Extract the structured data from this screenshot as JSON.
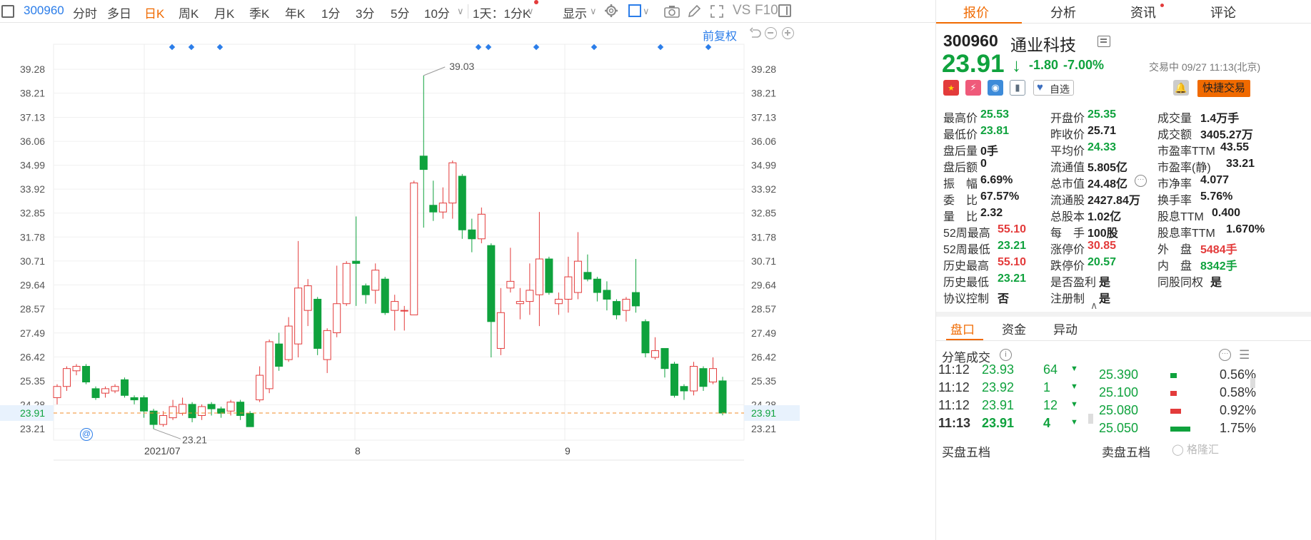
{
  "toolbar": {
    "stock_code": "300960",
    "tabs": [
      "分时",
      "多日",
      "日K",
      "周K",
      "月K",
      "季K",
      "年K",
      "1分",
      "3分",
      "5分",
      "10分"
    ],
    "active_tab": "日K",
    "range_select": "1天：1分K",
    "display_label": "显示",
    "vs_label": "VS",
    "f10_label": "F10"
  },
  "chart": {
    "fq_label": "前复权",
    "current_price_label": "23.91",
    "high_annotation": "39.03",
    "low_annotation": "23.21",
    "y_ticks": [
      "39.28",
      "38.21",
      "37.13",
      "36.06",
      "34.99",
      "33.92",
      "32.85",
      "31.78",
      "30.71",
      "29.64",
      "28.57",
      "27.49",
      "26.42",
      "25.35",
      "24.28",
      "23.21"
    ],
    "x_labels": [
      "2021/07",
      "8",
      "9"
    ],
    "colors": {
      "up": "#e33b3b",
      "down": "#0fa23d",
      "current_line": "#f28c28",
      "marker": "#2b7de9"
    }
  },
  "chart_data": {
    "type": "candlestick",
    "ylim": [
      22.7,
      40.4
    ],
    "current": 23.91,
    "candles": [
      [
        24.6,
        25.1,
        25.2,
        24.3
      ],
      [
        25.1,
        25.9,
        26.0,
        24.9
      ],
      [
        25.8,
        26.0,
        26.1,
        25.6
      ],
      [
        26.0,
        25.3,
        26.1,
        25.2
      ],
      [
        25.0,
        24.6,
        25.1,
        24.5
      ],
      [
        24.8,
        25.0,
        25.1,
        24.6
      ],
      [
        24.9,
        25.1,
        25.2,
        24.8
      ],
      [
        25.4,
        24.7,
        25.5,
        24.6
      ],
      [
        24.6,
        24.5,
        24.7,
        24.3
      ],
      [
        24.6,
        24.0,
        24.7,
        23.7
      ],
      [
        24.0,
        23.4,
        24.1,
        23.2
      ],
      [
        23.4,
        23.8,
        24.0,
        23.3
      ],
      [
        23.7,
        24.2,
        24.5,
        23.6
      ],
      [
        23.9,
        24.3,
        24.6,
        23.8
      ],
      [
        24.3,
        23.7,
        24.4,
        23.5
      ],
      [
        23.8,
        24.2,
        24.3,
        23.6
      ],
      [
        24.3,
        24.1,
        24.4,
        23.8
      ],
      [
        24.1,
        23.9,
        24.2,
        23.7
      ],
      [
        24.0,
        24.4,
        24.5,
        23.8
      ],
      [
        24.4,
        23.8,
        24.5,
        23.6
      ],
      [
        23.9,
        23.3,
        24.0,
        23.3
      ],
      [
        24.5,
        25.6,
        26.0,
        24.4
      ],
      [
        25.0,
        27.1,
        27.2,
        24.8
      ],
      [
        27.0,
        26.0,
        27.5,
        25.8
      ],
      [
        26.3,
        27.8,
        28.2,
        26.2
      ],
      [
        27.0,
        29.5,
        31.6,
        26.4
      ],
      [
        28.5,
        29.6,
        29.9,
        27.8
      ],
      [
        29.0,
        26.8,
        29.1,
        26.5
      ],
      [
        26.3,
        27.6,
        27.7,
        25.7
      ],
      [
        27.5,
        28.8,
        30.5,
        27.3
      ],
      [
        28.8,
        30.6,
        30.7,
        28.7
      ],
      [
        30.7,
        30.6,
        32.7,
        28.7
      ],
      [
        29.6,
        29.2,
        29.7,
        28.8
      ],
      [
        29.4,
        30.3,
        30.6,
        28.8
      ],
      [
        29.9,
        28.4,
        30.0,
        28.3
      ],
      [
        28.5,
        28.9,
        29.2,
        27.6
      ],
      [
        28.5,
        28.5,
        28.7,
        27.6
      ],
      [
        28.3,
        34.2,
        34.3,
        28.3
      ],
      [
        35.4,
        34.8,
        39.0,
        32.2
      ],
      [
        33.2,
        32.9,
        34.3,
        32.5
      ],
      [
        32.9,
        33.3,
        34.0,
        32.6
      ],
      [
        33.3,
        35.1,
        35.2,
        32.6
      ],
      [
        34.5,
        32.1,
        34.6,
        31.7
      ],
      [
        32.1,
        31.7,
        32.6,
        31.1
      ],
      [
        31.7,
        32.8,
        33.1,
        31.5
      ],
      [
        31.4,
        28.0,
        31.5,
        26.4
      ],
      [
        26.8,
        28.4,
        29.5,
        26.5
      ],
      [
        29.5,
        29.8,
        31.3,
        29.3
      ],
      [
        28.8,
        28.9,
        29.5,
        28.1
      ],
      [
        28.9,
        29.4,
        30.6,
        28.3
      ],
      [
        29.2,
        30.8,
        32.9,
        27.8
      ],
      [
        30.8,
        29.3,
        30.9,
        29.2
      ],
      [
        28.8,
        29.0,
        29.3,
        28.3
      ],
      [
        29.0,
        30.0,
        30.9,
        28.4
      ],
      [
        29.3,
        30.7,
        32.0,
        29.0
      ],
      [
        30.2,
        29.9,
        31.0,
        29.8
      ],
      [
        29.9,
        29.3,
        30.0,
        28.9
      ],
      [
        29.4,
        29.0,
        29.8,
        28.5
      ],
      [
        28.9,
        28.3,
        29.0,
        28.1
      ],
      [
        28.5,
        29.0,
        29.1,
        28.0
      ],
      [
        29.3,
        28.7,
        30.8,
        28.4
      ],
      [
        28.0,
        26.6,
        28.1,
        26.4
      ],
      [
        26.4,
        26.7,
        27.3,
        26.3
      ],
      [
        26.8,
        25.9,
        26.8,
        25.5
      ],
      [
        26.1,
        24.7,
        26.2,
        24.6
      ],
      [
        25.1,
        24.9,
        25.2,
        24.5
      ],
      [
        24.9,
        26.0,
        26.2,
        24.7
      ],
      [
        25.9,
        25.1,
        26.0,
        24.9
      ],
      [
        25.3,
        25.9,
        26.4,
        25.2
      ],
      [
        25.35,
        23.91,
        25.53,
        23.81
      ]
    ],
    "markers_x_index": [
      10,
      14,
      19,
      46,
      47,
      52,
      58,
      65,
      70
    ]
  },
  "right": {
    "tabs": [
      "报价",
      "分析",
      "资讯",
      "评论"
    ],
    "active_tab": "报价",
    "stock_code": "300960",
    "stock_name": "通业科技",
    "price": "23.91",
    "change": "-1.80",
    "change_pct": "-7.00%",
    "trade_status": "交易中 09/27 11:13(北京)",
    "watch_label": "自选",
    "quick_trade_label": "快捷交易",
    "stats_col1": [
      {
        "label": "最高价",
        "value": "25.53",
        "color": "g"
      },
      {
        "label": "最低价",
        "value": "23.81",
        "color": "g"
      },
      {
        "label": "盘后量",
        "value": "0",
        "unit": "手",
        "color": ""
      },
      {
        "label": "盘后额",
        "value": "0",
        "color": ""
      },
      {
        "label": "振　幅",
        "value": "6.69%",
        "color": ""
      },
      {
        "label": "委　比",
        "value": "67.57%",
        "color": ""
      },
      {
        "label": "量　比",
        "value": "2.32",
        "color": ""
      },
      {
        "label": "52周最高",
        "value": "55.10",
        "color": "r"
      },
      {
        "label": "52周最低",
        "value": "23.21",
        "color": "g"
      },
      {
        "label": "历史最高",
        "value": "55.10",
        "color": "r"
      },
      {
        "label": "历史最低",
        "value": "23.21",
        "color": "g"
      },
      {
        "label": "协议控制",
        "value": "否",
        "color": ""
      }
    ],
    "stats_col2": [
      {
        "label": "开盘价",
        "value": "25.35",
        "color": "g"
      },
      {
        "label": "昨收价",
        "value": "25.71",
        "color": ""
      },
      {
        "label": "平均价",
        "value": "24.33",
        "color": "g"
      },
      {
        "label": "流通值",
        "value": "5.805亿",
        "color": ""
      },
      {
        "label": "总市值",
        "value": "24.48亿",
        "color": ""
      },
      {
        "label": "流通股",
        "value": "2427.84万",
        "color": ""
      },
      {
        "label": "总股本",
        "value": "1.02亿",
        "color": ""
      },
      {
        "label": "每　手",
        "value": "100股",
        "color": ""
      },
      {
        "label": "涨停价",
        "value": "30.85",
        "color": "r"
      },
      {
        "label": "跌停价",
        "value": "20.57",
        "color": "g"
      },
      {
        "label": "是否盈利",
        "value": "是",
        "color": ""
      },
      {
        "label": "注册制",
        "value": "是",
        "color": ""
      }
    ],
    "stats_col3": [
      {
        "label": "成交量",
        "value": "1.4万手",
        "color": ""
      },
      {
        "label": "成交额",
        "value": "3405.27万",
        "color": ""
      },
      {
        "label": "市盈率TTM",
        "value": "43.55",
        "color": ""
      },
      {
        "label": "市盈率(静)",
        "value": "33.21",
        "color": ""
      },
      {
        "label": "市净率",
        "value": "4.077",
        "color": ""
      },
      {
        "label": "换手率",
        "value": "5.76%",
        "color": ""
      },
      {
        "label": "股息TTM",
        "value": "0.400",
        "color": ""
      },
      {
        "label": "股息率TTM",
        "value": "1.670%",
        "color": ""
      },
      {
        "label": "外　盘",
        "value": "5484手",
        "color": "r"
      },
      {
        "label": "内　盘",
        "value": "8342手",
        "color": "g"
      },
      {
        "label": "同股同权",
        "value": "是",
        "color": ""
      }
    ],
    "bottom_tabs": [
      "盘口",
      "资金",
      "异动"
    ],
    "active_bottom_tab": "盘口",
    "ticks_title": "分笔成交",
    "ticks": [
      {
        "time": "11:12",
        "price": "23.93",
        "vol": "64"
      },
      {
        "time": "11:12",
        "price": "23.92",
        "vol": "1"
      },
      {
        "time": "11:12",
        "price": "23.91",
        "vol": "12"
      },
      {
        "time": "11:13",
        "price": "23.91",
        "vol": "4"
      }
    ],
    "dist": [
      {
        "price": "25.390",
        "pct": "0.56%",
        "color": "#0fa23d",
        "bar": 0.32
      },
      {
        "price": "25.100",
        "pct": "0.58%",
        "color": "#e33b3b",
        "bar": 0.33
      },
      {
        "price": "25.080",
        "pct": "0.92%",
        "color": "#e33b3b",
        "bar": 0.53
      },
      {
        "price": "25.050",
        "pct": "1.75%",
        "color": "#0fa23d",
        "bar": 1.0
      }
    ],
    "buy5_label": "买盘五档",
    "sell5_label": "卖盘五档",
    "watermark": "格隆汇"
  }
}
